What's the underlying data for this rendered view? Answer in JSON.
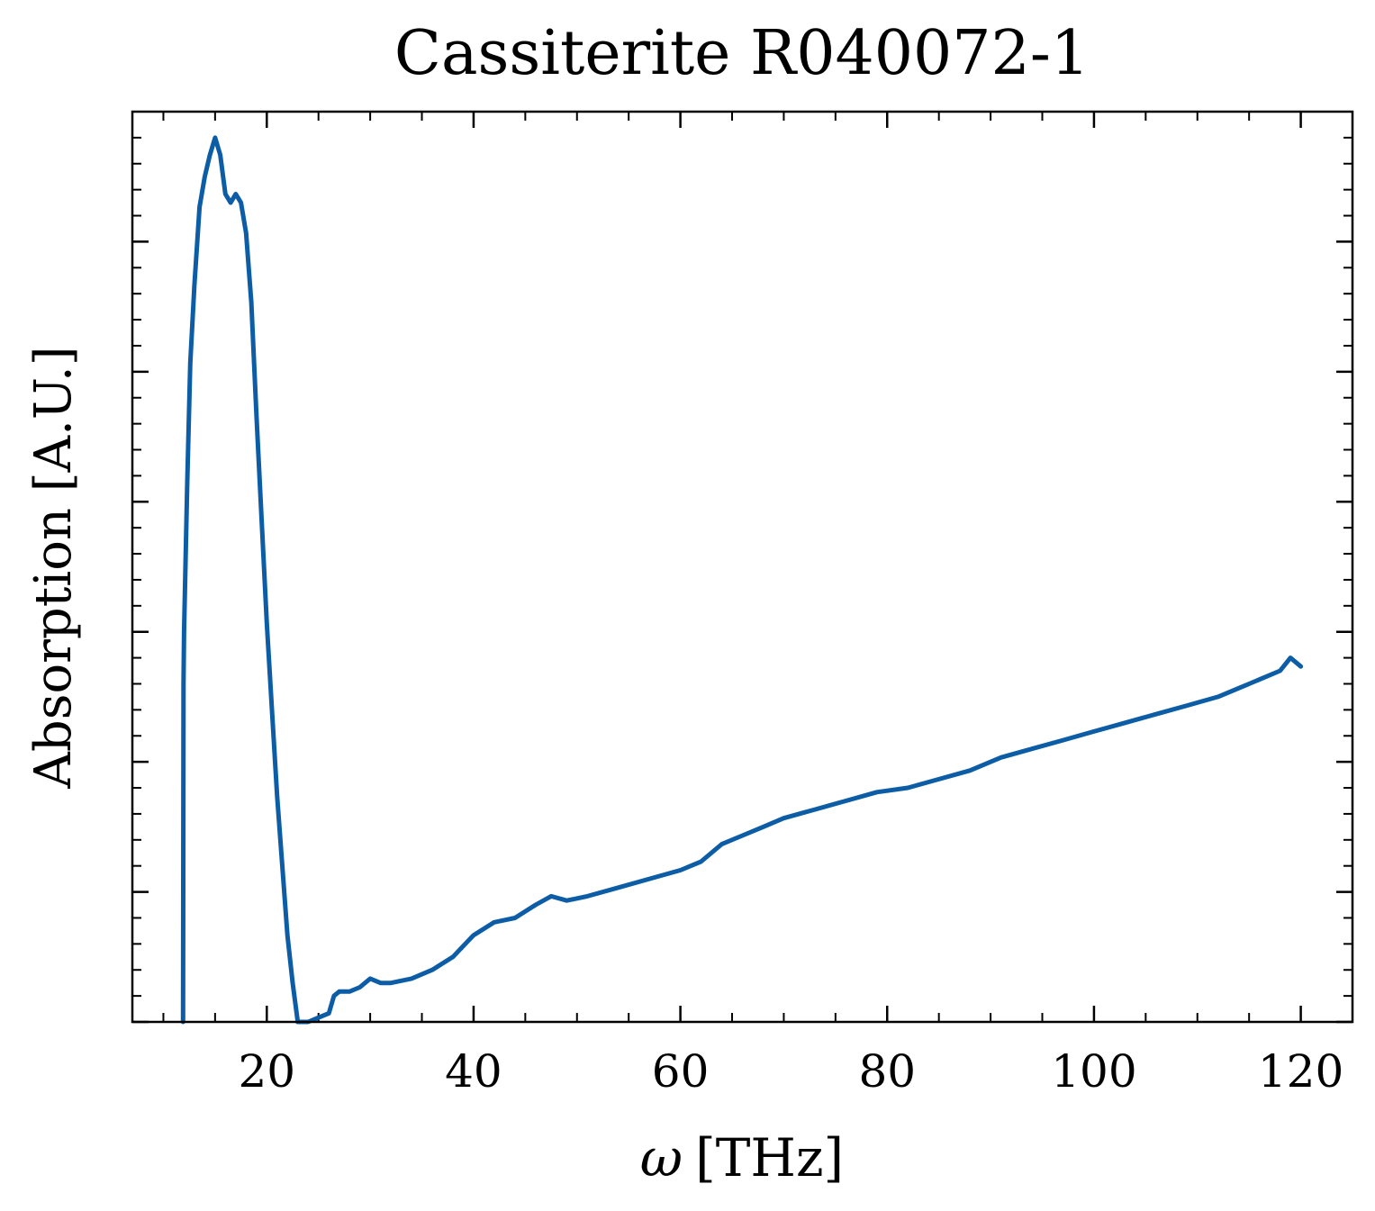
{
  "chart_data": {
    "type": "line",
    "title": "Cassiterite R040072-1",
    "xlabel_symbol": "ω",
    "xlabel_unit": "[THz]",
    "ylabel": "Absorption [A.U.]",
    "xlim": [
      7,
      125
    ],
    "ylim": [
      0.0,
      1.05
    ],
    "x_ticks": [
      20,
      40,
      60,
      80,
      100,
      120
    ],
    "y_ticks_unlabeled": [
      0.0,
      0.15,
      0.3,
      0.45,
      0.6,
      0.75,
      0.9
    ],
    "grid": false,
    "series_color": "#0C5DA5",
    "series": [
      {
        "x": [
          11.9,
          11.95,
          12.0,
          12.3,
          12.6,
          13.0,
          13.5,
          14.0,
          14.5,
          15.0,
          15.5,
          16.0,
          16.5,
          17.0,
          17.5,
          18.0,
          18.5,
          19.0,
          19.5,
          20.0,
          20.5,
          21.0,
          21.5,
          22.0,
          22.5,
          23.0,
          23.5,
          24.0,
          25.0,
          26.0,
          26.5,
          27.0,
          28.0,
          29.0,
          30.0,
          31.0,
          32.0,
          34.0,
          36.0,
          38.0,
          40.0,
          42.0,
          44.0,
          46.0,
          47.5,
          49.0,
          51.0,
          54.0,
          57.0,
          60.0,
          62.0,
          64.0,
          66.0,
          68.0,
          70.0,
          73.0,
          76.0,
          79.0,
          82.0,
          85.0,
          88.0,
          91.0,
          94.0,
          97.0,
          100.0,
          103.0,
          106.0,
          109.0,
          112.0,
          115.0,
          118.0,
          119.0,
          120.0
        ],
        "y": [
          0.0,
          0.39,
          0.45,
          0.62,
          0.76,
          0.85,
          0.94,
          0.975,
          1.0,
          1.02,
          1.0,
          0.955,
          0.945,
          0.955,
          0.945,
          0.91,
          0.83,
          0.7,
          0.58,
          0.46,
          0.36,
          0.26,
          0.18,
          0.1,
          0.045,
          0.0,
          0.0,
          0.0,
          0.005,
          0.01,
          0.03,
          0.035,
          0.035,
          0.04,
          0.05,
          0.045,
          0.045,
          0.05,
          0.06,
          0.075,
          0.1,
          0.115,
          0.12,
          0.135,
          0.145,
          0.14,
          0.145,
          0.155,
          0.165,
          0.175,
          0.185,
          0.205,
          0.215,
          0.225,
          0.235,
          0.245,
          0.255,
          0.265,
          0.27,
          0.28,
          0.29,
          0.305,
          0.315,
          0.325,
          0.335,
          0.345,
          0.355,
          0.365,
          0.375,
          0.39,
          0.405,
          0.42,
          0.41
        ]
      }
    ]
  }
}
